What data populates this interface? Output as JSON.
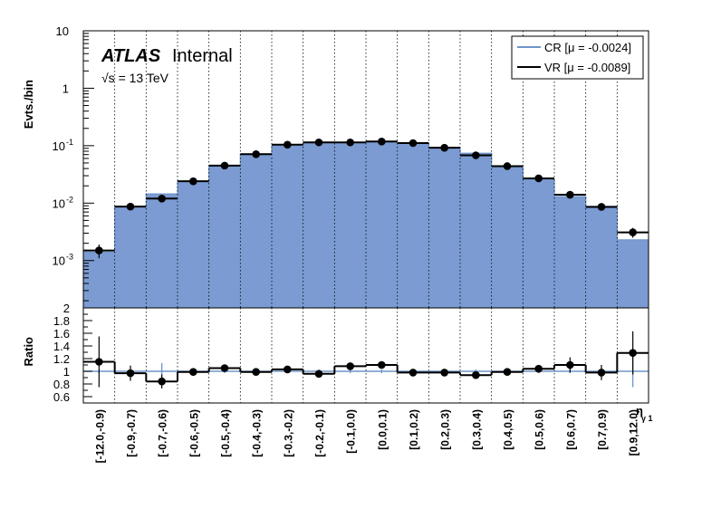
{
  "labels": {
    "atlas": "ATLAS",
    "internal": "Internal",
    "energy": "√s = 13 TeV",
    "xlabel": "η",
    "xsub": "γ 1"
  },
  "legend": [
    {
      "label": "CR [μ = -0.0024]",
      "color": "#6f95c9"
    },
    {
      "label": "VR [μ = -0.0089]",
      "color": "#000000"
    }
  ],
  "colors": {
    "fill": "#7b9bd2",
    "line": "#6f95c9",
    "data": "#000000"
  },
  "chart_data": [
    {
      "type": "bar",
      "ylabel": "Evts./bin",
      "yscale": "log",
      "ylim": [
        0.00015,
        10
      ],
      "yticklabels": [
        "10",
        "1",
        "10^-1",
        "10^-2",
        "10^-3"
      ],
      "categories": [
        "[-12.0,-0.9)",
        "[-0.9,-0.7)",
        "[-0.7,-0.6)",
        "[-0.6,-0.5)",
        "[-0.5,-0.4)",
        "[-0.4,-0.3)",
        "[-0.3,-0.2)",
        "[-0.2,-0.1)",
        "[-0.1,0.0)",
        "[0.0,0.1)",
        "[0.1,0.2)",
        "[0.2,0.3)",
        "[0.3,0.4)",
        "[0.4,0.5)",
        "[0.5,0.6)",
        "[0.6,0.7)",
        "[0.7,0.9)",
        "[0.9,12.0)"
      ],
      "series": [
        {
          "name": "CR [μ = -0.0024]",
          "kind": "filled-histogram",
          "values": [
            0.0014,
            0.0088,
            0.0145,
            0.024,
            0.044,
            0.072,
            0.1,
            0.115,
            0.113,
            0.115,
            0.11,
            0.092,
            0.074,
            0.043,
            0.026,
            0.013,
            0.0088,
            0.0023
          ]
        },
        {
          "name": "VR [μ = -0.0089]",
          "kind": "histogram-with-points",
          "values": [
            0.0015,
            0.0087,
            0.012,
            0.024,
            0.045,
            0.071,
            0.104,
            0.114,
            0.114,
            0.118,
            0.111,
            0.092,
            0.068,
            0.044,
            0.027,
            0.014,
            0.0086,
            0.0031
          ],
          "errors": [
            0.0004,
            0.001,
            0.0013,
            0.0018,
            0.003,
            0.003,
            0.004,
            0.004,
            0.004,
            0.004,
            0.004,
            0.0035,
            0.003,
            0.0025,
            0.002,
            0.0014,
            0.001,
            0.0006
          ]
        }
      ]
    },
    {
      "type": "scatter",
      "ylabel": "Ratio",
      "ylim": [
        0.5,
        2.0
      ],
      "yticks": [
        0.6,
        0.8,
        1,
        1.2,
        1.4,
        1.6,
        1.8,
        2
      ],
      "categories": [
        "[-12.0,-0.9)",
        "[-0.9,-0.7)",
        "[-0.7,-0.6)",
        "[-0.6,-0.5)",
        "[-0.5,-0.4)",
        "[-0.4,-0.3)",
        "[-0.3,-0.2)",
        "[-0.2,-0.1)",
        "[-0.1,0.0)",
        "[0.0,0.1)",
        "[0.1,0.2)",
        "[0.2,0.3)",
        "[0.3,0.4)",
        "[0.4,0.5)",
        "[0.5,0.6)",
        "[0.6,0.7)",
        "[0.7,0.9)",
        "[0.9,12.0)"
      ],
      "reference": 1.0,
      "series": [
        {
          "name": "CR",
          "values": [
            1,
            1,
            1,
            1,
            1,
            1,
            1,
            1,
            1,
            1,
            1,
            1,
            1,
            1,
            1,
            1,
            1,
            1
          ],
          "errors": [
            0.03,
            0.03,
            0.13,
            0.03,
            0.03,
            0.03,
            0.03,
            0.03,
            0.03,
            0.03,
            0.03,
            0.03,
            0.03,
            0.03,
            0.03,
            0.03,
            0.03,
            0.25
          ]
        },
        {
          "name": "VR",
          "values": [
            1.15,
            0.97,
            0.84,
            0.99,
            1.05,
            0.99,
            1.03,
            0.96,
            1.08,
            1.1,
            0.98,
            0.98,
            0.94,
            0.99,
            1.04,
            1.1,
            0.98,
            1.29
          ],
          "errors": [
            0.4,
            0.12,
            0.11,
            0.06,
            0.05,
            0.04,
            0.04,
            0.04,
            0.04,
            0.04,
            0.04,
            0.04,
            0.04,
            0.05,
            0.06,
            0.12,
            0.12,
            0.34
          ]
        }
      ]
    }
  ]
}
